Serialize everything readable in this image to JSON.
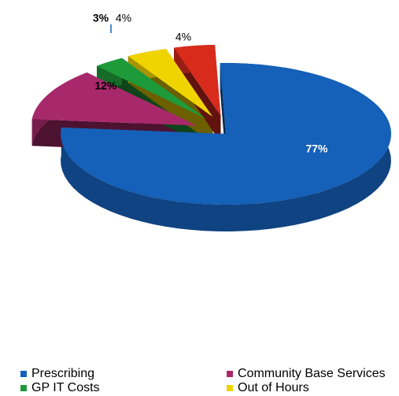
{
  "chart_data": {
    "type": "pie",
    "title": "",
    "slices": [
      {
        "label": "Prescribing",
        "value": 77,
        "display": "77%",
        "color": "#1560b8",
        "exploded": false
      },
      {
        "label": "Community Base Services",
        "value": 12,
        "display": "12%",
        "color": "#a8296b",
        "exploded": true
      },
      {
        "label": "GP IT Costs",
        "value": 3,
        "display": "3%",
        "color": "#1e9a3a",
        "exploded": true
      },
      {
        "label": "Out of Hours",
        "value": 4,
        "display": "4%",
        "color": "#f0d400",
        "exploded": true
      },
      {
        "label": "",
        "value": 4,
        "display": "4%",
        "color": "#d92b1c",
        "exploded": true
      }
    ],
    "legend_position": "bottom",
    "three_d": true
  },
  "legend": {
    "items": [
      {
        "label": "Prescribing",
        "color": "#1560b8"
      },
      {
        "label": "Community Base Services",
        "color": "#a8296b"
      },
      {
        "label": "GP IT Costs",
        "color": "#1e9a3a"
      },
      {
        "label": "Out of Hours",
        "color": "#f0d400"
      }
    ]
  }
}
